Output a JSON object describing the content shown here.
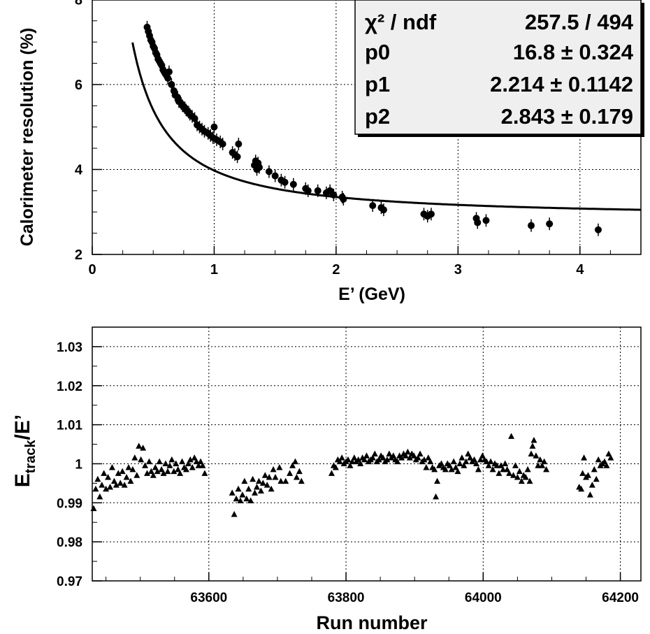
{
  "chart_data": [
    {
      "type": "scatter",
      "title": "",
      "xlabel": "E’ (GeV)",
      "ylabel": "Calorimeter resolution (%)",
      "xlim": [
        0,
        4.5
      ],
      "ylim": [
        2,
        8.5
      ],
      "grid": true,
      "x_ticks": [
        "0",
        "1",
        "2",
        "3",
        "4"
      ],
      "y_ticks": [
        "2",
        "4",
        "6",
        "8"
      ],
      "fit_function": "sqrt((p0/E)^2 + (p1/sqrt(E))^2 + p2^2)",
      "stats_box": {
        "placement": "top-right",
        "rows": [
          {
            "label": "χ² / ndf",
            "value": "257.5 / 494"
          },
          {
            "label": "p0",
            "value": "16.8 ± 0.324"
          },
          {
            "label": "p1",
            "value": "2.214 ± 0.1142"
          },
          {
            "label": "p2",
            "value": "2.843 ± 0.179"
          }
        ]
      },
      "points": [
        [
          0.45,
          7.35
        ],
        [
          0.46,
          7.25
        ],
        [
          0.47,
          7.15
        ],
        [
          0.48,
          7.05
        ],
        [
          0.49,
          7.0
        ],
        [
          0.5,
          6.9
        ],
        [
          0.51,
          6.85
        ],
        [
          0.52,
          6.75
        ],
        [
          0.53,
          6.7
        ],
        [
          0.54,
          6.6
        ],
        [
          0.55,
          6.55
        ],
        [
          0.56,
          6.5
        ],
        [
          0.57,
          6.45
        ],
        [
          0.58,
          6.35
        ],
        [
          0.59,
          6.3
        ],
        [
          0.6,
          6.25
        ],
        [
          0.62,
          6.15
        ],
        [
          0.63,
          6.3
        ],
        [
          0.65,
          6.0
        ],
        [
          0.67,
          5.85
        ],
        [
          0.68,
          5.75
        ],
        [
          0.7,
          5.7
        ],
        [
          0.71,
          5.6
        ],
        [
          0.73,
          5.55
        ],
        [
          0.74,
          5.5
        ],
        [
          0.76,
          5.45
        ],
        [
          0.77,
          5.4
        ],
        [
          0.79,
          5.35
        ],
        [
          0.8,
          5.3
        ],
        [
          0.82,
          5.25
        ],
        [
          0.84,
          5.2
        ],
        [
          0.86,
          5.05
        ],
        [
          0.88,
          5.0
        ],
        [
          0.9,
          4.95
        ],
        [
          0.92,
          4.9
        ],
        [
          0.95,
          4.85
        ],
        [
          0.97,
          4.8
        ],
        [
          0.99,
          4.75
        ],
        [
          1.0,
          5.0
        ],
        [
          1.02,
          4.7
        ],
        [
          1.05,
          4.65
        ],
        [
          1.07,
          4.6
        ],
        [
          1.15,
          4.4
        ],
        [
          1.17,
          4.35
        ],
        [
          1.19,
          4.3
        ],
        [
          1.2,
          4.6
        ],
        [
          1.33,
          4.1
        ],
        [
          1.34,
          4.2
        ],
        [
          1.35,
          4.0
        ],
        [
          1.36,
          4.15
        ],
        [
          1.37,
          4.05
        ],
        [
          1.45,
          3.95
        ],
        [
          1.5,
          3.85
        ],
        [
          1.55,
          3.75
        ],
        [
          1.58,
          3.7
        ],
        [
          1.65,
          3.65
        ],
        [
          1.75,
          3.55
        ],
        [
          1.77,
          3.5
        ],
        [
          1.85,
          3.5
        ],
        [
          1.92,
          3.45
        ],
        [
          1.95,
          3.5
        ],
        [
          1.98,
          3.4
        ],
        [
          2.05,
          3.35
        ],
        [
          2.06,
          3.3
        ],
        [
          2.3,
          3.15
        ],
        [
          2.37,
          3.1
        ],
        [
          2.39,
          3.05
        ],
        [
          2.72,
          2.95
        ],
        [
          2.75,
          2.9
        ],
        [
          2.78,
          2.95
        ],
        [
          3.15,
          2.85
        ],
        [
          3.16,
          2.75
        ],
        [
          3.23,
          2.8
        ],
        [
          3.6,
          2.68
        ],
        [
          3.75,
          2.72
        ],
        [
          4.15,
          2.58
        ]
      ]
    },
    {
      "type": "scatter",
      "title": "",
      "xlabel": "Run number",
      "ylabel": "E_track/E’",
      "ylabel_main": "E",
      "ylabel_sub": "track",
      "ylabel_tail": "/E’",
      "xlim": [
        63430,
        64230
      ],
      "ylim": [
        0.97,
        1.035
      ],
      "grid": true,
      "marker": "triangle",
      "x_ticks": [
        "63600",
        "63800",
        "64000",
        "64200"
      ],
      "y_ticks": [
        "0.97",
        "0.98",
        "0.99",
        "1",
        "1.01",
        "1.02",
        "1.03"
      ],
      "points": [
        [
          63432,
          0.9885
        ],
        [
          63435,
          0.9935
        ],
        [
          63438,
          0.996
        ],
        [
          63441,
          0.9915
        ],
        [
          63444,
          0.9945
        ],
        [
          63447,
          0.9975
        ],
        [
          63450,
          0.9935
        ],
        [
          63453,
          0.9965
        ],
        [
          63456,
          0.994
        ],
        [
          63459,
          0.999
        ],
        [
          63462,
          0.9955
        ],
        [
          63465,
          0.9945
        ],
        [
          63468,
          0.9975
        ],
        [
          63471,
          0.995
        ],
        [
          63474,
          0.998
        ],
        [
          63477,
          0.9945
        ],
        [
          63480,
          0.9965
        ],
        [
          63483,
          0.999
        ],
        [
          63486,
          0.9955
        ],
        [
          63489,
          0.9985
        ],
        [
          63492,
          1.0015
        ],
        [
          63495,
          0.997
        ],
        [
          63498,
          1.0045
        ],
        [
          63501,
          1.001
        ],
        [
          63504,
          1.004
        ],
        [
          63507,
          0.9995
        ],
        [
          63510,
          0.9975
        ],
        [
          63513,
          1.0005
        ],
        [
          63516,
          0.998
        ],
        [
          63519,
          0.997
        ],
        [
          63522,
          0.999
        ],
        [
          63525,
          0.998
        ],
        [
          63528,
          1.0005
        ],
        [
          63531,
          0.9985
        ],
        [
          63534,
          0.9975
        ],
        [
          63537,
          1.0
        ],
        [
          63540,
          0.998
        ],
        [
          63543,
          0.9995
        ],
        [
          63546,
          1.001
        ],
        [
          63549,
          0.998
        ],
        [
          63552,
          1.0
        ],
        [
          63555,
          0.9985
        ],
        [
          63558,
          0.9975
        ],
        [
          63561,
          1.0005
        ],
        [
          63564,
          0.999
        ],
        [
          63567,
          0.9985
        ],
        [
          63570,
          1.0
        ],
        [
          63573,
          1.001
        ],
        [
          63576,
          0.999
        ],
        [
          63579,
          1.0015
        ],
        [
          63582,
          1.0005
        ],
        [
          63585,
          0.9995
        ],
        [
          63588,
          1.0005
        ],
        [
          63591,
          0.9995
        ],
        [
          63594,
          0.9975
        ],
        [
          63634,
          0.9925
        ],
        [
          63637,
          0.987
        ],
        [
          63640,
          0.991
        ],
        [
          63643,
          0.9935
        ],
        [
          63646,
          0.9905
        ],
        [
          63649,
          0.992
        ],
        [
          63652,
          0.9955
        ],
        [
          63655,
          0.991
        ],
        [
          63658,
          0.9935
        ],
        [
          63661,
          0.9905
        ],
        [
          63664,
          0.996
        ],
        [
          63667,
          0.9925
        ],
        [
          63670,
          0.994
        ],
        [
          63673,
          0.9955
        ],
        [
          63676,
          0.993
        ],
        [
          63679,
          0.995
        ],
        [
          63682,
          0.997
        ],
        [
          63685,
          0.9945
        ],
        [
          63688,
          0.9965
        ],
        [
          63691,
          0.9935
        ],
        [
          63694,
          0.9985
        ],
        [
          63697,
          0.9965
        ],
        [
          63703,
          0.999
        ],
        [
          63705,
          0.9955
        ],
        [
          63712,
          0.9955
        ],
        [
          63718,
          0.9975
        ],
        [
          63722,
          0.9995
        ],
        [
          63726,
          1.0005
        ],
        [
          63728,
          0.9965
        ],
        [
          63732,
          0.998
        ],
        [
          63735,
          0.9955
        ],
        [
          63779,
          0.9975
        ],
        [
          63782,
          0.9995
        ],
        [
          63785,
          0.999
        ],
        [
          63788,
          1.001
        ],
        [
          63791,
          1.0005
        ],
        [
          63794,
          1.0015
        ],
        [
          63797,
          1.0
        ],
        [
          63800,
          1.0005
        ],
        [
          63803,
          1.001
        ],
        [
          63806,
          0.9995
        ],
        [
          63809,
          1.0005
        ],
        [
          63812,
          1.0015
        ],
        [
          63815,
          1.0005
        ],
        [
          63818,
          1.001
        ],
        [
          63821,
          1.0
        ],
        [
          63824,
          1.0015
        ],
        [
          63827,
          1.001
        ],
        [
          63830,
          1.002
        ],
        [
          63833,
          1.0005
        ],
        [
          63836,
          1.001
        ],
        [
          63839,
          1.0015
        ],
        [
          63842,
          1.0025
        ],
        [
          63845,
          1.0005
        ],
        [
          63848,
          1.001
        ],
        [
          63851,
          1.002
        ],
        [
          63854,
          1.0015
        ],
        [
          63857,
          1.0005
        ],
        [
          63860,
          1.001
        ],
        [
          63863,
          1.0025
        ],
        [
          63866,
          1.0015
        ],
        [
          63869,
          1.002
        ],
        [
          63872,
          1.001
        ],
        [
          63875,
          1.0005
        ],
        [
          63878,
          1.002
        ],
        [
          63881,
          1.0015
        ],
        [
          63884,
          1.0025
        ],
        [
          63887,
          1.002
        ],
        [
          63890,
          1.003
        ],
        [
          63893,
          1.0015
        ],
        [
          63896,
          1.0025
        ],
        [
          63899,
          1.002
        ],
        [
          63902,
          1.001
        ],
        [
          63905,
          1.0015
        ],
        [
          63908,
          1.0025
        ],
        [
          63911,
          1.0005
        ],
        [
          63914,
          1.001
        ],
        [
          63917,
          0.999
        ],
        [
          63920,
          1.0015
        ],
        [
          63923,
          1.0005
        ],
        [
          63926,
          0.999
        ],
        [
          63929,
          0.9985
        ],
        [
          63931,
          0.9915
        ],
        [
          63933,
          0.9955
        ],
        [
          63936,
          0.9995
        ],
        [
          63939,
          1.0
        ],
        [
          63942,
          0.999
        ],
        [
          63945,
          0.9985
        ],
        [
          63948,
          1.0
        ],
        [
          63951,
          0.9995
        ],
        [
          63954,
          0.9985
        ],
        [
          63957,
          1.0005
        ],
        [
          63960,
          0.999
        ],
        [
          63963,
          0.998
        ],
        [
          63966,
          1.0
        ],
        [
          63969,
          1.0015
        ],
        [
          63972,
          0.9995
        ],
        [
          63975,
          1.0005
        ],
        [
          63978,
          1.0025
        ],
        [
          63981,
          1.0015
        ],
        [
          63984,
          1.0005
        ],
        [
          63987,
          1.001
        ],
        [
          63990,
          1.0
        ],
        [
          63993,
          0.9985
        ],
        [
          63996,
          1.001
        ],
        [
          63999,
          1.002
        ],
        [
          64002,
          1.001
        ],
        [
          64005,
          1.0005
        ],
        [
          64008,
          0.9995
        ],
        [
          64011,
          1.0005
        ],
        [
          64014,
          0.9985
        ],
        [
          64017,
          1.0
        ],
        [
          64020,
          0.9995
        ],
        [
          64023,
          0.9975
        ],
        [
          64026,
          0.9995
        ],
        [
          64029,
          0.9985
        ],
        [
          64032,
          1.0
        ],
        [
          64035,
          0.9985
        ],
        [
          64038,
          0.9975
        ],
        [
          64041,
          1.007
        ],
        [
          64044,
          0.997
        ],
        [
          64047,
          0.9995
        ],
        [
          64050,
          0.9965
        ],
        [
          64053,
          0.998
        ],
        [
          64056,
          0.9955
        ],
        [
          64059,
          0.997
        ],
        [
          64062,
          0.9965
        ],
        [
          64065,
          0.9985
        ],
        [
          64068,
          0.9955
        ],
        [
          64070,
          1.0025
        ],
        [
          64072,
          1.0045
        ],
        [
          64074,
          1.006
        ],
        [
          64077,
          1.002
        ],
        [
          64080,
          0.9995
        ],
        [
          64083,
          1.001
        ],
        [
          64086,
          0.9995
        ],
        [
          64089,
          1.0005
        ],
        [
          64092,
          0.9985
        ],
        [
          64140,
          0.994
        ],
        [
          64143,
          0.9935
        ],
        [
          64145,
          0.9975
        ],
        [
          64147,
          1.0015
        ],
        [
          64150,
          0.9965
        ],
        [
          64153,
          0.997
        ],
        [
          64156,
          0.992
        ],
        [
          64159,
          0.9945
        ],
        [
          64162,
          0.9985
        ],
        [
          64165,
          0.996
        ],
        [
          64168,
          1.001
        ],
        [
          64171,
          0.9995
        ],
        [
          64174,
          1.0
        ],
        [
          64177,
          1.0005
        ],
        [
          64180,
          0.9995
        ],
        [
          64183,
          1.0025
        ],
        [
          64186,
          1.0015
        ]
      ]
    }
  ]
}
